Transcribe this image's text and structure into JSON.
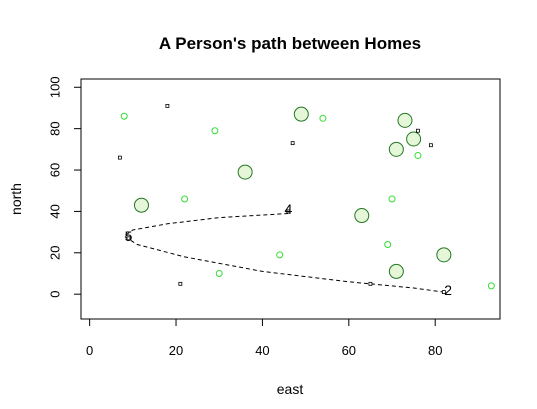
{
  "chart_data": {
    "type": "scatter",
    "title": "A Person's path between Homes",
    "xlabel": "east",
    "ylabel": "north",
    "xlim": [
      -2,
      95
    ],
    "ylim": [
      -12,
      104
    ],
    "xticks": [
      0,
      20,
      40,
      60,
      80
    ],
    "yticks": [
      0,
      20,
      40,
      60,
      80,
      100
    ],
    "grid": false,
    "colors": {
      "small_point_stroke": "#33dd33",
      "large_point_stroke": "#227722",
      "large_point_fill": "#e6f7d9",
      "square_stroke": "#000000",
      "path_stroke": "#000000"
    },
    "small_points": [
      {
        "x": 8,
        "y": 86
      },
      {
        "x": 29,
        "y": 79
      },
      {
        "x": 22,
        "y": 46
      },
      {
        "x": 54,
        "y": 85
      },
      {
        "x": 76,
        "y": 67
      },
      {
        "x": 70,
        "y": 46
      },
      {
        "x": 69,
        "y": 24
      },
      {
        "x": 44,
        "y": 19
      },
      {
        "x": 30,
        "y": 10
      },
      {
        "x": 93,
        "y": 4
      }
    ],
    "large_points": [
      {
        "x": 12,
        "y": 43
      },
      {
        "x": 36,
        "y": 59
      },
      {
        "x": 49,
        "y": 87
      },
      {
        "x": 73,
        "y": 84
      },
      {
        "x": 75,
        "y": 75
      },
      {
        "x": 71,
        "y": 70
      },
      {
        "x": 63,
        "y": 38
      },
      {
        "x": 82,
        "y": 19
      },
      {
        "x": 71,
        "y": 11
      }
    ],
    "square_points": [
      {
        "x": 18,
        "y": 91
      },
      {
        "x": 7,
        "y": 66
      },
      {
        "x": 47,
        "y": 73
      },
      {
        "x": 76,
        "y": 79
      },
      {
        "x": 79,
        "y": 72
      },
      {
        "x": 46,
        "y": 40
      },
      {
        "x": 9,
        "y": 27
      },
      {
        "x": 21,
        "y": 5
      },
      {
        "x": 65,
        "y": 5
      },
      {
        "x": 82,
        "y": 1
      }
    ],
    "path": [
      {
        "x": 46,
        "y": 39
      },
      {
        "x": 30,
        "y": 37
      },
      {
        "x": 18,
        "y": 34
      },
      {
        "x": 10,
        "y": 31
      },
      {
        "x": 8,
        "y": 28
      },
      {
        "x": 11,
        "y": 24
      },
      {
        "x": 22,
        "y": 18
      },
      {
        "x": 40,
        "y": 11
      },
      {
        "x": 60,
        "y": 6
      },
      {
        "x": 75,
        "y": 3
      },
      {
        "x": 82,
        "y": 1
      }
    ],
    "path_labels": [
      {
        "text": "4",
        "x": 46,
        "y": 41
      },
      {
        "text": "5",
        "x": 9,
        "y": 28
      },
      {
        "text": "2",
        "x": 83,
        "y": 2
      }
    ]
  }
}
